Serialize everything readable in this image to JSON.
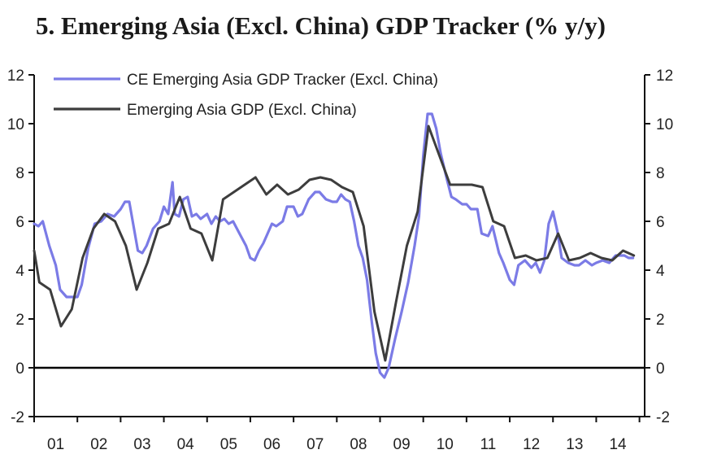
{
  "chart_data": {
    "type": "line",
    "title": "5. Emerging Asia (Excl. China) GDP Tracker (% y/y)",
    "xlabel": "",
    "ylabel": "",
    "ylim": [
      -2,
      12
    ],
    "y_ticks": [
      "-2",
      "0",
      "2",
      "4",
      "6",
      "8",
      "10",
      "12"
    ],
    "x_ticks": [
      "01",
      "02",
      "03",
      "04",
      "05",
      "06",
      "07",
      "08",
      "09",
      "10",
      "11",
      "12",
      "13",
      "14"
    ],
    "zero_line": true,
    "legend_position": "top-left",
    "colors": {
      "tracker": "#7b7be6",
      "gdp": "#3d3d3d"
    },
    "series": [
      {
        "name": "CE Emerging Asia GDP Tracker (Excl. China)",
        "key": "tracker",
        "points": [
          [
            2001.0,
            5.9
          ],
          [
            2001.1,
            5.8
          ],
          [
            2001.2,
            6.0
          ],
          [
            2001.35,
            5.0
          ],
          [
            2001.5,
            4.2
          ],
          [
            2001.6,
            3.2
          ],
          [
            2001.75,
            2.9
          ],
          [
            2001.9,
            2.9
          ],
          [
            2002.0,
            2.9
          ],
          [
            2002.1,
            3.4
          ],
          [
            2002.25,
            4.9
          ],
          [
            2002.4,
            5.9
          ],
          [
            2002.55,
            6.0
          ],
          [
            2002.7,
            6.3
          ],
          [
            2002.85,
            6.2
          ],
          [
            2003.0,
            6.5
          ],
          [
            2003.1,
            6.8
          ],
          [
            2003.2,
            6.8
          ],
          [
            2003.3,
            5.8
          ],
          [
            2003.4,
            4.8
          ],
          [
            2003.5,
            4.7
          ],
          [
            2003.6,
            5.0
          ],
          [
            2003.75,
            5.7
          ],
          [
            2003.9,
            6.0
          ],
          [
            2004.0,
            6.6
          ],
          [
            2004.1,
            6.3
          ],
          [
            2004.2,
            7.6
          ],
          [
            2004.25,
            6.3
          ],
          [
            2004.35,
            6.2
          ],
          [
            2004.45,
            6.9
          ],
          [
            2004.55,
            7.0
          ],
          [
            2004.65,
            6.2
          ],
          [
            2004.75,
            6.3
          ],
          [
            2004.85,
            6.1
          ],
          [
            2005.0,
            6.3
          ],
          [
            2005.1,
            5.9
          ],
          [
            2005.2,
            6.2
          ],
          [
            2005.3,
            6.0
          ],
          [
            2005.4,
            6.1
          ],
          [
            2005.5,
            5.9
          ],
          [
            2005.6,
            6.0
          ],
          [
            2005.75,
            5.5
          ],
          [
            2005.9,
            5.0
          ],
          [
            2006.0,
            4.5
          ],
          [
            2006.1,
            4.4
          ],
          [
            2006.2,
            4.8
          ],
          [
            2006.3,
            5.1
          ],
          [
            2006.4,
            5.5
          ],
          [
            2006.5,
            5.9
          ],
          [
            2006.6,
            5.8
          ],
          [
            2006.75,
            6.0
          ],
          [
            2006.85,
            6.6
          ],
          [
            2007.0,
            6.6
          ],
          [
            2007.1,
            6.2
          ],
          [
            2007.2,
            6.3
          ],
          [
            2007.35,
            6.9
          ],
          [
            2007.5,
            7.2
          ],
          [
            2007.6,
            7.2
          ],
          [
            2007.75,
            6.9
          ],
          [
            2007.9,
            6.8
          ],
          [
            2008.0,
            6.8
          ],
          [
            2008.1,
            7.1
          ],
          [
            2008.2,
            6.9
          ],
          [
            2008.3,
            6.8
          ],
          [
            2008.4,
            6.0
          ],
          [
            2008.5,
            5.0
          ],
          [
            2008.6,
            4.5
          ],
          [
            2008.7,
            3.6
          ],
          [
            2008.8,
            2.0
          ],
          [
            2008.9,
            0.6
          ],
          [
            2009.0,
            -0.2
          ],
          [
            2009.1,
            -0.4
          ],
          [
            2009.2,
            0.0
          ],
          [
            2009.35,
            1.2
          ],
          [
            2009.5,
            2.3
          ],
          [
            2009.65,
            3.5
          ],
          [
            2009.8,
            5.0
          ],
          [
            2009.9,
            6.2
          ],
          [
            2010.0,
            8.7
          ],
          [
            2010.1,
            10.4
          ],
          [
            2010.2,
            10.4
          ],
          [
            2010.3,
            9.8
          ],
          [
            2010.4,
            8.8
          ],
          [
            2010.55,
            7.7
          ],
          [
            2010.65,
            7.0
          ],
          [
            2010.75,
            6.9
          ],
          [
            2010.9,
            6.7
          ],
          [
            2011.0,
            6.7
          ],
          [
            2011.1,
            6.5
          ],
          [
            2011.25,
            6.5
          ],
          [
            2011.35,
            5.5
          ],
          [
            2011.5,
            5.4
          ],
          [
            2011.6,
            5.8
          ],
          [
            2011.75,
            4.7
          ],
          [
            2011.85,
            4.3
          ],
          [
            2012.0,
            3.6
          ],
          [
            2012.1,
            3.4
          ],
          [
            2012.2,
            4.2
          ],
          [
            2012.35,
            4.4
          ],
          [
            2012.5,
            4.1
          ],
          [
            2012.6,
            4.3
          ],
          [
            2012.7,
            3.9
          ],
          [
            2012.8,
            4.4
          ],
          [
            2012.9,
            5.9
          ],
          [
            2013.0,
            6.4
          ],
          [
            2013.1,
            5.6
          ],
          [
            2013.2,
            4.5
          ],
          [
            2013.35,
            4.3
          ],
          [
            2013.5,
            4.2
          ],
          [
            2013.6,
            4.2
          ],
          [
            2013.75,
            4.4
          ],
          [
            2013.9,
            4.2
          ],
          [
            2014.0,
            4.3
          ],
          [
            2014.15,
            4.4
          ],
          [
            2014.3,
            4.3
          ],
          [
            2014.45,
            4.6
          ],
          [
            2014.55,
            4.6
          ],
          [
            2014.65,
            4.6
          ],
          [
            2014.75,
            4.5
          ],
          [
            2014.85,
            4.5
          ]
        ]
      },
      {
        "name": "Emerging Asia GDP (Excl. China)",
        "key": "gdp",
        "points": [
          [
            2001.0,
            4.8
          ],
          [
            2001.12,
            3.5
          ],
          [
            2001.37,
            3.2
          ],
          [
            2001.62,
            1.7
          ],
          [
            2001.87,
            2.4
          ],
          [
            2002.12,
            4.5
          ],
          [
            2002.37,
            5.7
          ],
          [
            2002.62,
            6.3
          ],
          [
            2002.87,
            6.0
          ],
          [
            2003.12,
            5.0
          ],
          [
            2003.37,
            3.2
          ],
          [
            2003.62,
            4.3
          ],
          [
            2003.87,
            5.7
          ],
          [
            2004.12,
            5.9
          ],
          [
            2004.37,
            7.0
          ],
          [
            2004.62,
            5.7
          ],
          [
            2004.87,
            5.5
          ],
          [
            2005.12,
            4.4
          ],
          [
            2005.37,
            6.9
          ],
          [
            2005.62,
            7.2
          ],
          [
            2005.87,
            7.5
          ],
          [
            2006.12,
            7.8
          ],
          [
            2006.37,
            7.1
          ],
          [
            2006.62,
            7.5
          ],
          [
            2006.87,
            7.1
          ],
          [
            2007.12,
            7.3
          ],
          [
            2007.37,
            7.7
          ],
          [
            2007.62,
            7.8
          ],
          [
            2007.87,
            7.7
          ],
          [
            2008.12,
            7.4
          ],
          [
            2008.37,
            7.2
          ],
          [
            2008.62,
            5.8
          ],
          [
            2008.87,
            2.3
          ],
          [
            2009.12,
            0.3
          ],
          [
            2009.37,
            2.7
          ],
          [
            2009.62,
            5.0
          ],
          [
            2009.87,
            6.4
          ],
          [
            2010.12,
            9.9
          ],
          [
            2010.37,
            8.7
          ],
          [
            2010.62,
            7.5
          ],
          [
            2010.87,
            7.5
          ],
          [
            2011.12,
            7.5
          ],
          [
            2011.37,
            7.4
          ],
          [
            2011.62,
            6.0
          ],
          [
            2011.87,
            5.8
          ],
          [
            2012.12,
            4.5
          ],
          [
            2012.37,
            4.6
          ],
          [
            2012.62,
            4.4
          ],
          [
            2012.87,
            4.5
          ],
          [
            2013.12,
            5.5
          ],
          [
            2013.37,
            4.4
          ],
          [
            2013.62,
            4.5
          ],
          [
            2013.87,
            4.7
          ],
          [
            2014.12,
            4.5
          ],
          [
            2014.37,
            4.4
          ],
          [
            2014.62,
            4.8
          ],
          [
            2014.87,
            4.6
          ]
        ]
      }
    ]
  }
}
